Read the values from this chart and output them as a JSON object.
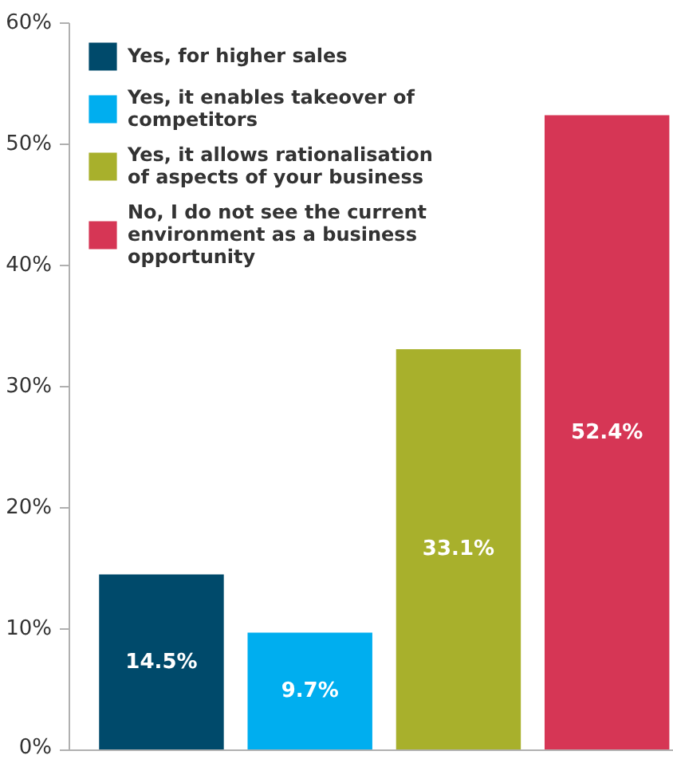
{
  "chart_data": {
    "type": "bar",
    "categories": [
      null,
      null,
      null,
      null
    ],
    "series": [
      {
        "name": "Yes, for higher sales",
        "color": "#004a6b",
        "values": [
          14.5,
          null,
          null,
          null
        ],
        "value_labels": [
          "14.5%",
          null,
          null,
          null
        ]
      },
      {
        "name": "Yes, it enables takeover of competitors",
        "color": "#00aeef",
        "values": [
          null,
          9.7,
          null,
          null
        ],
        "value_labels": [
          null,
          "9.7%",
          null,
          null
        ]
      },
      {
        "name": "Yes, it allows rationalisation of aspects of your business",
        "color": "#a8b02c",
        "values": [
          null,
          null,
          33.1,
          null
        ],
        "value_labels": [
          null,
          null,
          "33.1%",
          null
        ]
      },
      {
        "name": "No, I do not see the current environment as a business opportunity",
        "color": "#d63655",
        "values": [
          null,
          null,
          null,
          52.4
        ],
        "value_labels": [
          null,
          null,
          null,
          "52.4%"
        ]
      }
    ],
    "ylim": [
      0,
      60
    ],
    "yticks": [
      {
        "value": 0,
        "label": "0%"
      },
      {
        "value": 10,
        "label": "10%"
      },
      {
        "value": 20,
        "label": "20%"
      },
      {
        "value": 30,
        "label": "30%"
      },
      {
        "value": 40,
        "label": "40%"
      },
      {
        "value": 50,
        "label": "50%"
      },
      {
        "value": 60,
        "label": "60%"
      }
    ],
    "grid": false,
    "legend": "top left"
  }
}
